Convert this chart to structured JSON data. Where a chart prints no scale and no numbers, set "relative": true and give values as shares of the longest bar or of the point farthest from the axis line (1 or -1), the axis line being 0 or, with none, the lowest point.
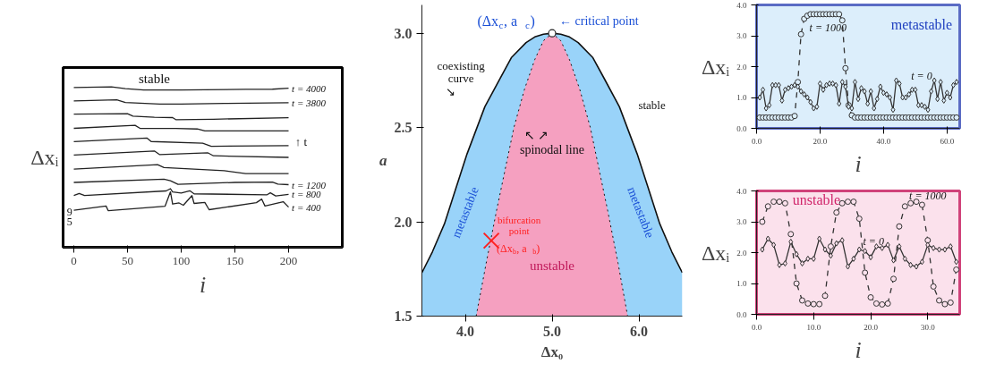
{
  "chart_data": [
    {
      "type": "line",
      "relative": true,
      "tick_labels": "x",
      "xlabel": "i",
      "ylabel": "Δxᵢ",
      "xlim": [
        -10,
        250
      ],
      "xticks": [
        0,
        50,
        100,
        150,
        200
      ],
      "grid": false,
      "annotations": [
        "stable",
        "↑ t",
        "9",
        "5"
      ],
      "series": [
        {
          "name": "t = 4000",
          "color": "#222222",
          "x": [
            0,
            35,
            48,
            65,
            100,
            160,
            185,
            200
          ],
          "values": [
            0.995,
            1.0,
            0.988,
            0.98,
            0.98,
            0.984,
            0.985,
            0.991
          ]
        },
        {
          "name": "t = 3800",
          "color": "#222222",
          "x": [
            0,
            40,
            48,
            80,
            100,
            140,
            200
          ],
          "values": [
            0.912,
            0.919,
            0.902,
            0.892,
            0.892,
            0.896,
            0.901
          ]
        },
        {
          "color": "#222222",
          "x": [
            0,
            50,
            55,
            75,
            92,
            95,
            130,
            200
          ],
          "values": [
            0.829,
            0.832,
            0.817,
            0.81,
            0.808,
            0.795,
            0.798,
            0.807
          ]
        },
        {
          "color": "#222222",
          "x": [
            0,
            57,
            62,
            95,
            115,
            122,
            200
          ],
          "values": [
            0.741,
            0.76,
            0.74,
            0.74,
            0.737,
            0.725,
            0.725
          ]
        },
        {
          "color": "#222222",
          "x": [
            0,
            68,
            72,
            120,
            128,
            200
          ],
          "values": [
            0.658,
            0.681,
            0.659,
            0.648,
            0.629,
            0.633
          ]
        },
        {
          "color": "#222222",
          "x": [
            0,
            75,
            80,
            125,
            130,
            200
          ],
          "values": [
            0.575,
            0.6,
            0.577,
            0.588,
            0.57,
            0.56
          ]
        },
        {
          "color": "#222222",
          "x": [
            0,
            78,
            84,
            140,
            160,
            200
          ],
          "values": [
            0.487,
            0.515,
            0.497,
            0.477,
            0.459,
            0.459
          ]
        },
        {
          "name": "t = 1200",
          "color": "#222222",
          "x": [
            0,
            84,
            90,
            97,
            150,
            185,
            190,
            200
          ],
          "values": [
            0.404,
            0.424,
            0.414,
            0.392,
            0.404,
            0.406,
            0.393,
            0.39
          ]
        },
        {
          "name": "t = 800",
          "color": "#222222",
          "x": [
            0,
            5,
            10,
            86,
            90,
            92,
            100,
            108,
            112,
            180,
            183,
            188,
            200
          ],
          "values": [
            0.323,
            0.335,
            0.323,
            0.351,
            0.365,
            0.345,
            0.338,
            0.352,
            0.333,
            0.327,
            0.339,
            0.32,
            0.329
          ]
        },
        {
          "name": "t = 400",
          "color": "#222222",
          "x": [
            0,
            30,
            32,
            85,
            90,
            92,
            98,
            102,
            110,
            112,
            122,
            126,
            170,
            175,
            178,
            195,
            200
          ],
          "values": [
            0.23,
            0.257,
            0.228,
            0.256,
            0.345,
            0.269,
            0.276,
            0.262,
            0.322,
            0.273,
            0.279,
            0.234,
            0.278,
            0.3,
            0.257,
            0.284,
            0.25
          ]
        }
      ]
    },
    {
      "type": "area",
      "xlabel": "Δx₀",
      "ylabel": "a",
      "xlim": [
        3.5,
        6.5
      ],
      "xticks": [
        {
          "value": 4,
          "label": "4.0"
        },
        {
          "value": 5,
          "label": "5.0"
        },
        {
          "value": 6,
          "label": "6.0"
        }
      ],
      "ylim": [
        1.5,
        3.15
      ],
      "yticks": [
        1.5,
        {
          "value": 2,
          "label": "2.0"
        },
        2.5,
        {
          "value": 3,
          "label": "3.0"
        }
      ],
      "grid": false,
      "annotations": [
        {
          "text": "(Δx$_{c}$, a$_{c}$)",
          "x": 5.0,
          "y": 3.0
        },
        {
          "text": "← critical point",
          "x": 5.0,
          "y": 3.0
        },
        "coexisting\ncurve\n       ↘",
        "stable",
        "↖           ↗\nspinodal line",
        "metastable",
        "metastable",
        "bifurcation\npoint",
        "(Δx$_{b}$, a$_{b}$)",
        "unstable"
      ],
      "series": [
        {
          "color": "#99d3f9",
          "line_style": "solid",
          "x": [
            3.5,
            3.62,
            3.76,
            3.9,
            4.02,
            4.225,
            4.4,
            4.53,
            4.7,
            4.8,
            4.9,
            5.0,
            5.1,
            5.2,
            5.3,
            5.47,
            5.6,
            5.775,
            5.98,
            6.1,
            6.24,
            6.38,
            6.5
          ],
          "values": [
            1.73,
            1.84,
            1.99,
            2.19,
            2.36,
            2.61,
            2.76,
            2.87,
            2.95,
            2.98,
            2.995,
            3.0,
            2.995,
            2.98,
            2.95,
            2.87,
            2.76,
            2.61,
            2.36,
            2.19,
            1.99,
            1.84,
            1.73
          ]
        },
        {
          "color": "#f5a0c0",
          "line_style": "dotted",
          "x": [
            4.125,
            4.24,
            4.36,
            4.46,
            4.56,
            4.68,
            4.8,
            4.9,
            5.0,
            5.1,
            5.2,
            5.32,
            5.44,
            5.54,
            5.64,
            5.76,
            5.87
          ],
          "values": [
            1.5,
            1.78,
            2.06,
            2.28,
            2.5,
            2.7,
            2.86,
            2.96,
            3.0,
            2.96,
            2.86,
            2.7,
            2.5,
            2.28,
            2.06,
            1.78,
            1.5
          ]
        },
        {
          "type": "scatter",
          "marker": "circle",
          "color": "#222222",
          "x": [
            5.0
          ],
          "values": [
            3.0
          ]
        },
        {
          "type": "scatter",
          "marker": "cross",
          "color": "#ff2020",
          "x": [
            4.3
          ],
          "values": [
            1.9
          ]
        }
      ]
    },
    {
      "type": "line",
      "xlabel": "i",
      "ylabel": "Δxᵢ",
      "xlim": [
        0,
        64
      ],
      "xticks": [
        {
          "value": 0,
          "label": "0.0"
        },
        {
          "value": 20,
          "label": "20.0"
        },
        {
          "value": 40,
          "label": "40.0"
        },
        {
          "value": 60,
          "label": "60.0"
        }
      ],
      "ylim": [
        0,
        4
      ],
      "yticks": [
        {
          "value": 0,
          "label": "0.0"
        },
        {
          "value": 1,
          "label": "1.0"
        },
        {
          "value": 2,
          "label": "2.0"
        },
        {
          "value": 3,
          "label": "3.0"
        },
        {
          "value": 4,
          "label": "4.0"
        }
      ],
      "grid": false,
      "annotations": [
        "metastable"
      ],
      "series": [
        {
          "name": "t = 1000",
          "color": "#333333",
          "marker": "circle",
          "line_style": "dashed",
          "x": [
            1,
            2,
            3,
            4,
            5,
            6,
            7,
            8,
            9,
            10,
            11,
            12,
            13,
            14,
            15,
            16,
            17,
            18,
            19,
            20,
            21,
            22,
            23,
            24,
            25,
            26,
            27,
            28,
            29,
            30,
            31,
            32,
            33,
            34,
            35,
            36,
            37,
            38,
            39,
            40,
            41,
            42,
            43,
            44,
            45,
            46,
            47,
            48,
            49,
            50,
            51,
            52,
            53,
            54,
            55,
            56,
            57,
            58,
            59,
            60,
            61,
            62,
            63
          ],
          "values": [
            0.35,
            0.35,
            0.35,
            0.35,
            0.35,
            0.35,
            0.35,
            0.35,
            0.35,
            0.35,
            0.35,
            0.4,
            1.5,
            3.05,
            3.55,
            3.65,
            3.7,
            3.7,
            3.7,
            3.7,
            3.7,
            3.7,
            3.7,
            3.7,
            3.7,
            3.7,
            3.5,
            1.95,
            0.75,
            0.42,
            0.35,
            0.35,
            0.35,
            0.35,
            0.35,
            0.35,
            0.35,
            0.35,
            0.35,
            0.35,
            0.35,
            0.35,
            0.35,
            0.35,
            0.35,
            0.35,
            0.35,
            0.35,
            0.35,
            0.35,
            0.35,
            0.35,
            0.35,
            0.35,
            0.35,
            0.35,
            0.35,
            0.35,
            0.35,
            0.35,
            0.35,
            0.35,
            0.35
          ]
        },
        {
          "name": "t = 0",
          "color": "#333333",
          "marker": "diamond",
          "line_style": "solid",
          "x": [
            1,
            2,
            3,
            4,
            5,
            6,
            7,
            8,
            9,
            10,
            11,
            12,
            13,
            14,
            15,
            16,
            17,
            18,
            19,
            20,
            21,
            22,
            23,
            24,
            25,
            26,
            27,
            28,
            29,
            30,
            31,
            32,
            33,
            34,
            35,
            36,
            37,
            38,
            39,
            40,
            41,
            42,
            43,
            44,
            45,
            46,
            47,
            48,
            49,
            50,
            51,
            52,
            53,
            54,
            55,
            56,
            57,
            58,
            59,
            60,
            61,
            62,
            63
          ],
          "values": [
            1.0,
            1.25,
            0.65,
            0.75,
            1.4,
            1.4,
            1.4,
            0.9,
            1.25,
            1.3,
            1.35,
            1.4,
            1.35,
            1.2,
            1.1,
            1.0,
            0.85,
            0.65,
            0.7,
            1.45,
            1.25,
            1.4,
            1.45,
            1.45,
            1.4,
            0.8,
            1.5,
            1.35,
            0.7,
            0.65,
            1.5,
            0.95,
            1.3,
            1.2,
            0.8,
            1.2,
            0.65,
            0.95,
            1.35,
            1.15,
            1.1,
            1.0,
            0.6,
            1.55,
            1.45,
            1.0,
            1.0,
            1.1,
            1.25,
            1.25,
            0.75,
            0.75,
            0.7,
            0.6,
            1.2,
            1.55,
            0.95,
            1.5,
            0.9,
            1.15,
            1.0,
            1.4,
            1.5
          ]
        }
      ]
    },
    {
      "type": "line",
      "xlabel": "i",
      "ylabel": "Δxᵢ",
      "xlim": [
        0,
        35.6
      ],
      "xticks": [
        {
          "value": 0,
          "label": "0.0"
        },
        {
          "value": 10,
          "label": "10.0"
        },
        {
          "value": 20,
          "label": "20.0"
        },
        {
          "value": 30,
          "label": "30.0"
        }
      ],
      "ylim": [
        0,
        4
      ],
      "yticks": [
        {
          "value": 0,
          "label": "0.0"
        },
        {
          "value": 1,
          "label": "1.0"
        },
        {
          "value": 2,
          "label": "2.0"
        },
        {
          "value": 3,
          "label": "3.0"
        },
        {
          "value": 4,
          "label": "4.0"
        }
      ],
      "grid": false,
      "annotations": [
        "unstable"
      ],
      "series": [
        {
          "name": "t = 1000",
          "color": "#333333",
          "marker": "circle",
          "line_style": "dashed",
          "x": [
            1,
            2,
            3,
            4,
            5,
            6,
            7,
            8,
            9,
            10,
            11,
            12,
            13,
            14,
            15,
            16,
            17,
            18,
            19,
            20,
            21,
            22,
            23,
            24,
            25,
            26,
            27,
            28,
            29,
            30,
            31,
            32,
            33,
            34,
            35
          ],
          "values": [
            3.0,
            3.5,
            3.65,
            3.65,
            3.6,
            2.6,
            1.0,
            0.45,
            0.35,
            0.33,
            0.33,
            0.6,
            2.2,
            3.3,
            3.6,
            3.65,
            3.65,
            3.1,
            1.35,
            0.55,
            0.35,
            0.32,
            0.35,
            1.15,
            2.85,
            3.5,
            3.6,
            3.65,
            3.55,
            2.4,
            0.9,
            0.45,
            0.33,
            0.38,
            1.45
          ]
        },
        {
          "name": "t = 0",
          "color": "#333333",
          "marker": "diamond",
          "line_style": "solid",
          "x": [
            1,
            2,
            3,
            4,
            5,
            6,
            7,
            8,
            9,
            10,
            11,
            12,
            13,
            14,
            15,
            16,
            17,
            18,
            19,
            20,
            21,
            22,
            23,
            24,
            25,
            26,
            27,
            28,
            29,
            30,
            31,
            32,
            33,
            34,
            35
          ],
          "values": [
            2.1,
            2.45,
            2.25,
            1.6,
            1.65,
            2.35,
            1.95,
            1.65,
            1.8,
            1.8,
            2.45,
            2.1,
            1.9,
            2.3,
            2.4,
            1.55,
            1.8,
            2.1,
            2.05,
            1.85,
            2.2,
            2.15,
            2.25,
            1.75,
            2.2,
            1.8,
            1.6,
            1.55,
            1.7,
            2.25,
            2.15,
            2.1,
            2.1,
            2.2,
            1.7
          ]
        }
      ]
    }
  ]
}
